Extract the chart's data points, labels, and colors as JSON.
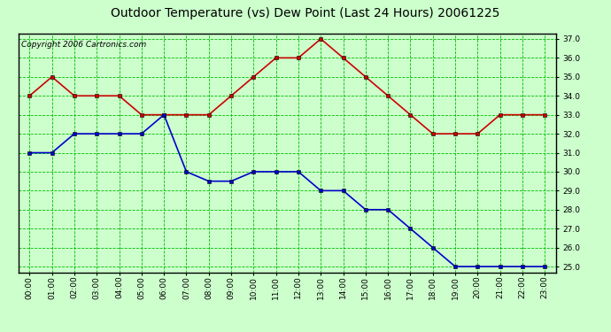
{
  "title": "Outdoor Temperature (vs) Dew Point (Last 24 Hours) 20061225",
  "copyright": "Copyright 2006 Cartronics.com",
  "hours": [
    "00:00",
    "01:00",
    "02:00",
    "03:00",
    "04:00",
    "05:00",
    "06:00",
    "07:00",
    "08:00",
    "09:00",
    "10:00",
    "11:00",
    "12:00",
    "13:00",
    "14:00",
    "15:00",
    "16:00",
    "17:00",
    "18:00",
    "19:00",
    "20:00",
    "21:00",
    "22:00",
    "23:00"
  ],
  "temp": [
    34.0,
    35.0,
    34.0,
    34.0,
    34.0,
    33.0,
    33.0,
    33.0,
    33.0,
    34.0,
    35.0,
    36.0,
    36.0,
    37.0,
    36.0,
    35.0,
    34.0,
    33.0,
    32.0,
    32.0,
    32.0,
    33.0,
    33.0,
    33.0
  ],
  "dew": [
    31.0,
    31.0,
    32.0,
    32.0,
    32.0,
    32.0,
    33.0,
    30.0,
    29.5,
    29.5,
    30.0,
    30.0,
    30.0,
    29.0,
    29.0,
    28.0,
    28.0,
    27.0,
    26.0,
    25.0,
    25.0,
    25.0,
    25.0,
    25.0
  ],
  "temp_color": "#cc0000",
  "dew_color": "#0000cc",
  "marker": "s",
  "marker_size": 3,
  "line_width": 1.2,
  "ylim_min": 25.0,
  "ylim_max": 37.0,
  "ytick_step": 1.0,
  "bg_color": "#ccffcc",
  "plot_bg_color": "#ccffcc",
  "grid_color": "#00bb00",
  "title_fontsize": 10,
  "copyright_fontsize": 6.5,
  "tick_fontsize": 6.5,
  "border_color": "#000000"
}
